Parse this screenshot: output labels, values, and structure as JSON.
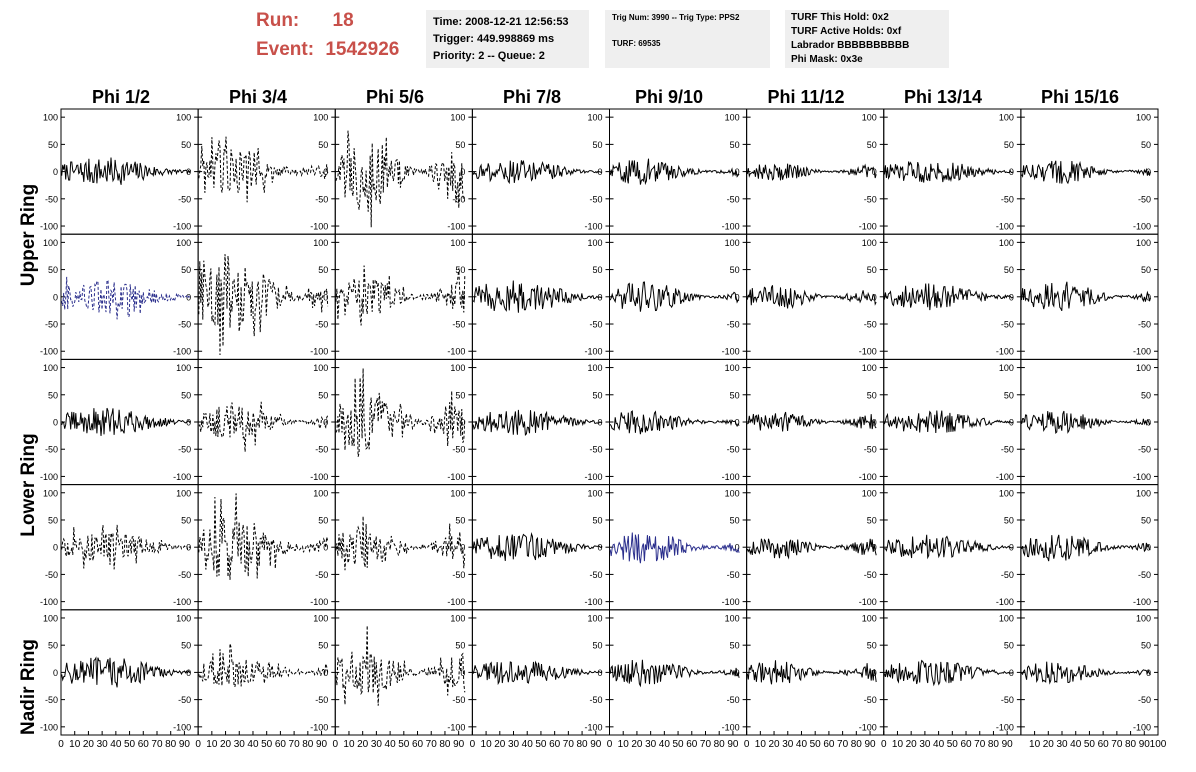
{
  "header": {
    "run_label": "Run:",
    "run_value": "18",
    "event_label": "Event:",
    "event_value": "1542926",
    "time_box": {
      "line1": "Time: 2008-12-21 12:56:53",
      "line2": "Trigger: 449.998869 ms",
      "line3": "Priority: 2 -- Queue: 2"
    },
    "trig_box": {
      "line1": "Trig Num: 3990 -- Trig Type: PPS2",
      "line2": "TURF: 69535"
    },
    "turf_box": {
      "line1": "TURF This Hold: 0x2",
      "line2": "TURF Active Holds: 0xf",
      "line3": "Labrador BBBBBBBBBB",
      "line4": "Phi Mask: 0x3e"
    }
  },
  "column_labels": [
    "Phi 1/2",
    "Phi 3/4",
    "Phi 5/6",
    "Phi 7/8",
    "Phi 9/10",
    "Phi 11/12",
    "Phi 13/14",
    "Phi 15/16"
  ],
  "ring_labels": [
    "Upper Ring",
    "Lower Ring",
    "Nadir Ring"
  ],
  "colors": {
    "background": "#ffffff",
    "header_red": "#c8504a",
    "info_box_bg": "#efefef",
    "trace_black": "#000000",
    "trace_blue": "#2a2e8c"
  },
  "chart_data": {
    "type": "line",
    "grid": false,
    "panel_grid": {
      "rows": 5,
      "cols": 8
    },
    "xlim": [
      0,
      100
    ],
    "ylim": [
      -115,
      115
    ],
    "x_ticks": [
      "0",
      "10",
      "20",
      "30",
      "40",
      "50",
      "60",
      "70",
      "80",
      "90",
      "100"
    ],
    "x_ticks_last_col": [
      "10",
      "20",
      "30",
      "40",
      "50",
      "60",
      "70",
      "80",
      "90",
      "100"
    ],
    "y_ticks": [
      "100",
      "50",
      "0",
      "-50",
      "-100"
    ],
    "panel_styles": [
      [
        "solid",
        "dashed",
        "dashed",
        "solid",
        "solid",
        "solid",
        "solid",
        "solid"
      ],
      [
        "dashed-blue",
        "dashed",
        "dashed",
        "solid",
        "solid",
        "solid",
        "solid",
        "solid"
      ],
      [
        "solid",
        "dashed",
        "dashed",
        "solid",
        "solid",
        "solid",
        "solid",
        "solid"
      ],
      [
        "dashed",
        "dashed",
        "dashed",
        "solid",
        "solid-blue",
        "solid",
        "solid",
        "solid"
      ],
      [
        "solid",
        "dashed",
        "dashed",
        "solid",
        "solid",
        "solid",
        "solid",
        "solid"
      ]
    ],
    "panel_amplitudes": [
      [
        15,
        25,
        35,
        12,
        14,
        10,
        12,
        13
      ],
      [
        18,
        40,
        22,
        18,
        16,
        14,
        14,
        17
      ],
      [
        15,
        18,
        30,
        14,
        13,
        12,
        13,
        12
      ],
      [
        15,
        35,
        22,
        15,
        17,
        13,
        13,
        15
      ],
      [
        17,
        17,
        28,
        13,
        14,
        13,
        13,
        12
      ]
    ]
  }
}
